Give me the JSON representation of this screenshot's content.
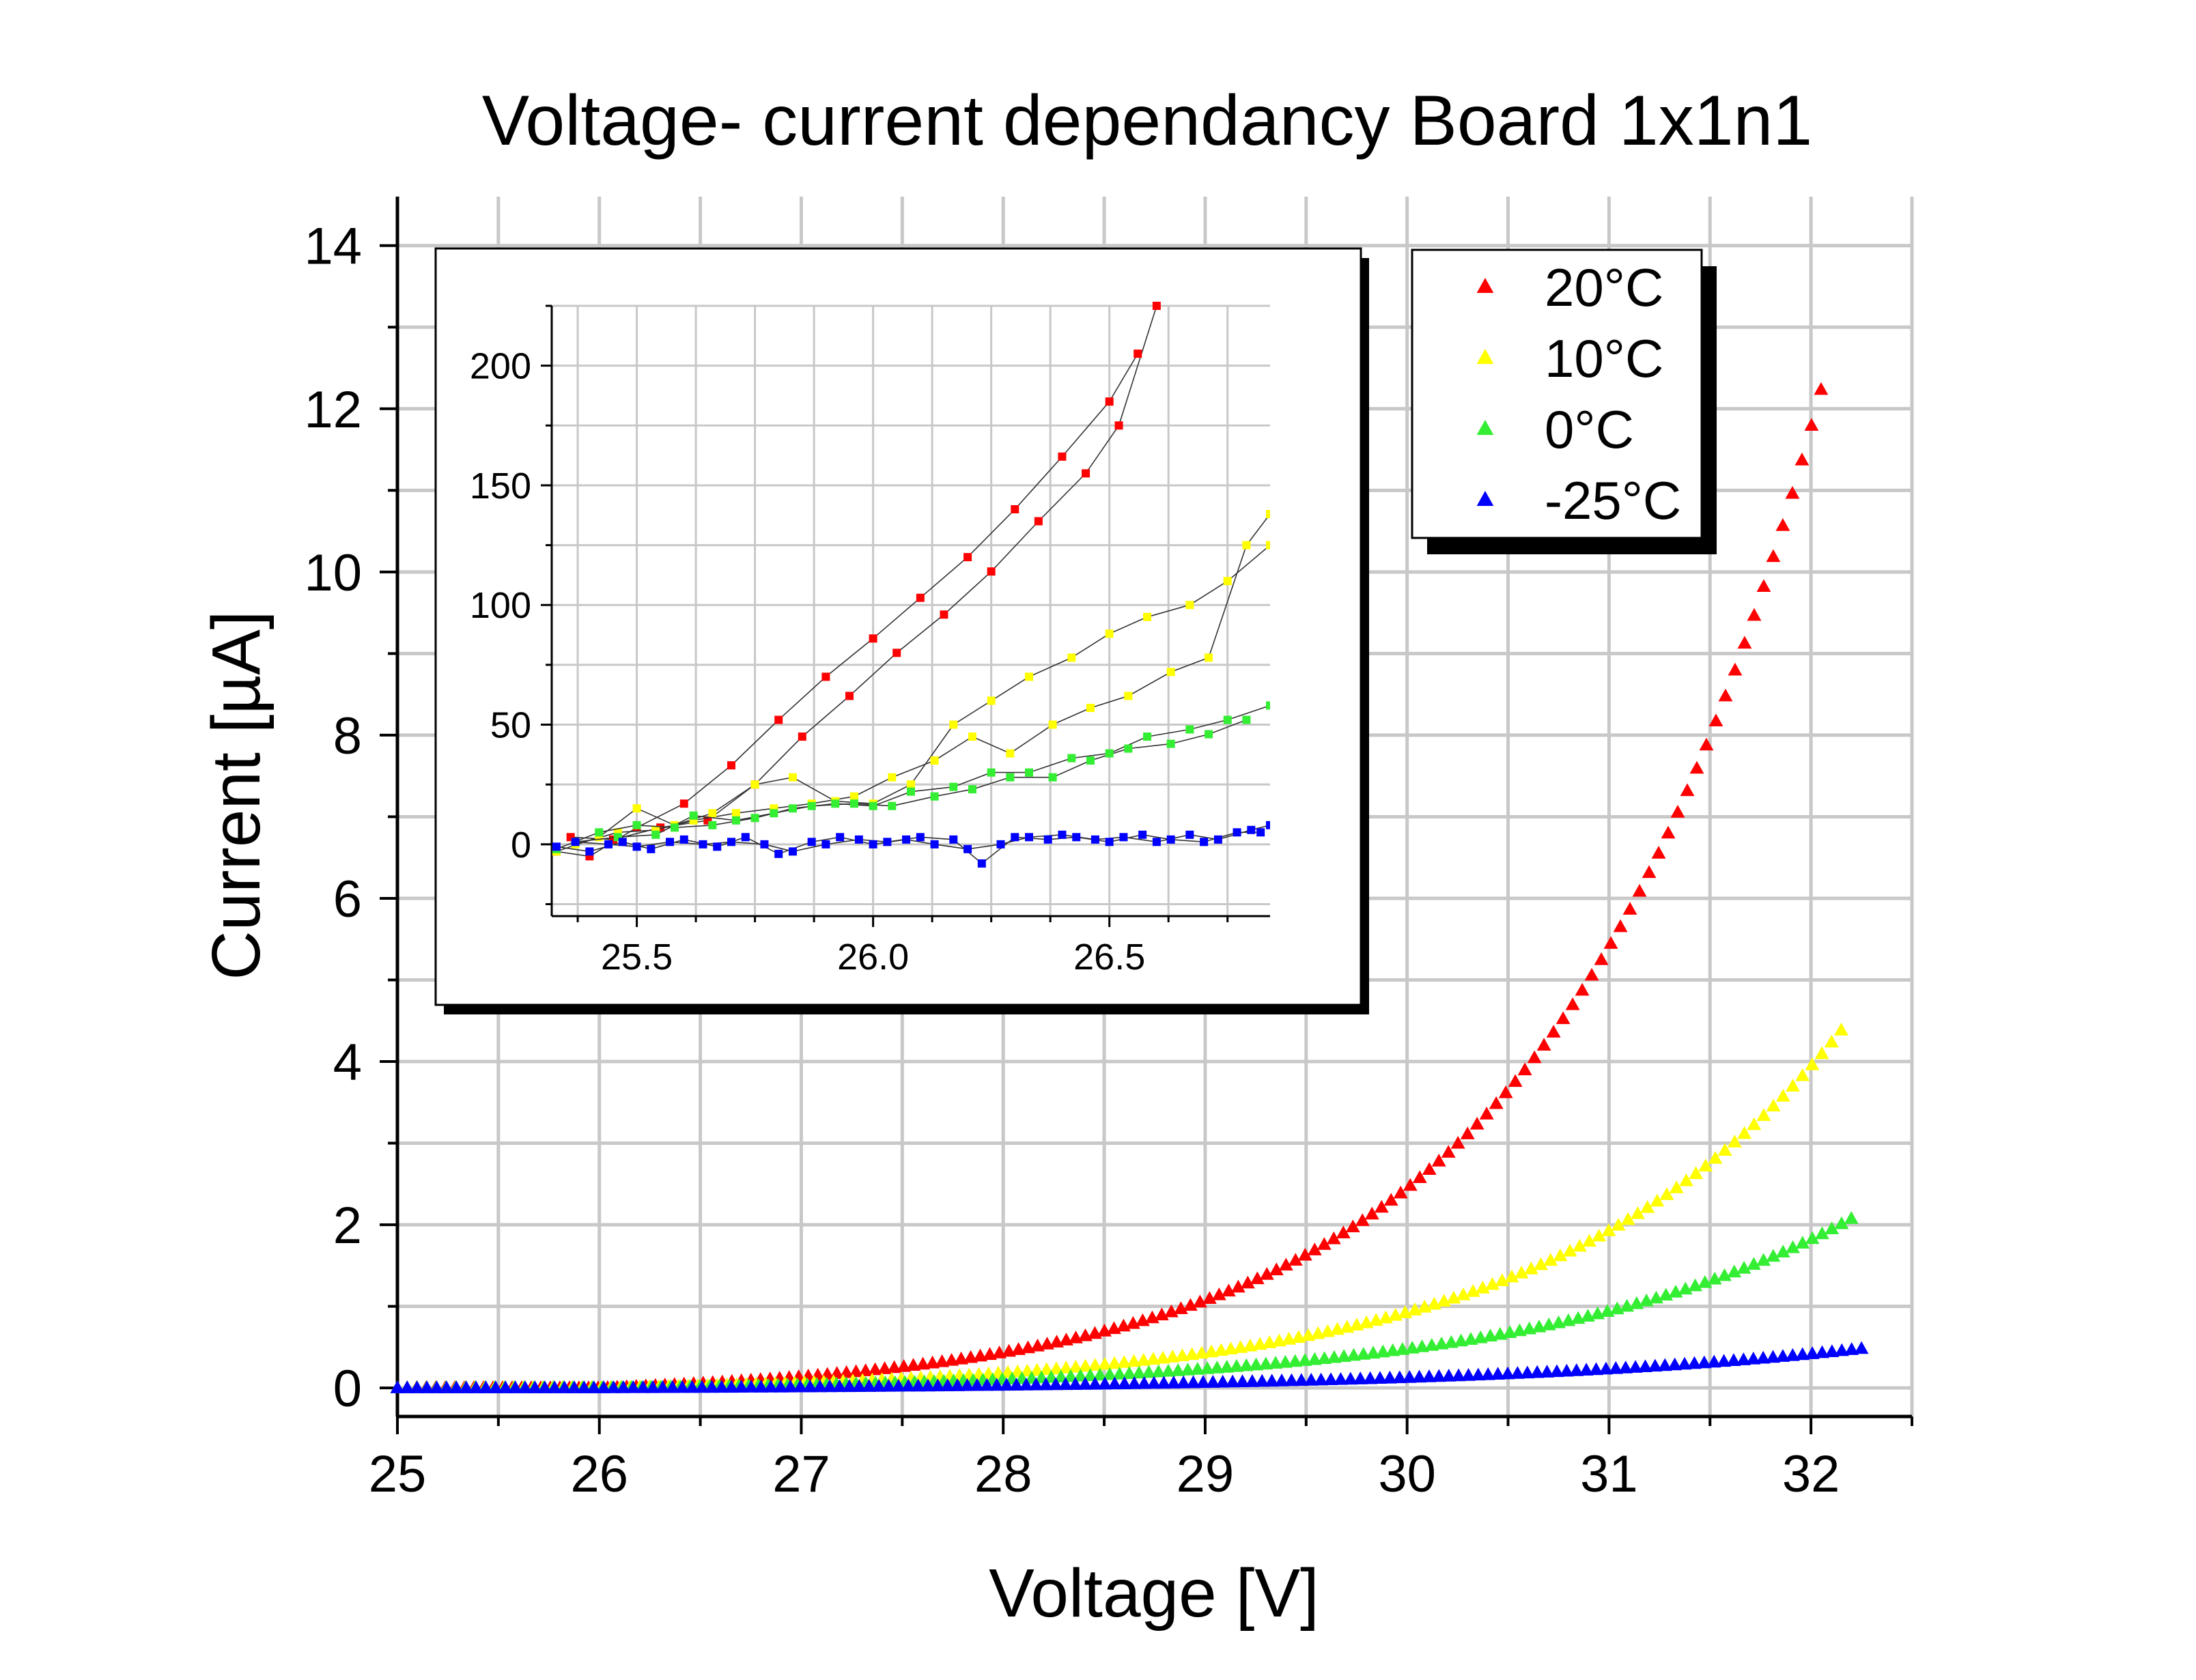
{
  "colors": {
    "red": "#ff0000",
    "yellow": "#ffff00",
    "green": "#33ee33",
    "blue": "#0000ff",
    "grid": "#c8c8c8",
    "axis": "#000000"
  },
  "chart_data": [
    {
      "type": "scatter",
      "title": "Voltage- current dependancy Board 1x1n1",
      "xlabel": "Voltage [V]",
      "ylabel": "Current [µA]",
      "xlim": [
        25,
        32.5
      ],
      "ylim": [
        -0.35,
        14.6
      ],
      "xticks": [
        25,
        26,
        27,
        28,
        29,
        30,
        31,
        32
      ],
      "yticks": [
        0,
        2,
        4,
        6,
        8,
        10,
        12,
        14
      ],
      "grid": true,
      "marker": "triangle",
      "legend_position": "top-right",
      "series": [
        {
          "name": "20°C",
          "color": "#ff0000",
          "model": {
            "type": "exponential",
            "v0": 26.0,
            "v_end": 32.05,
            "a": 0.12,
            "k": 0.766,
            "offset": -0.12
          },
          "n_points": 150
        },
        {
          "name": "10°C",
          "color": "#ffff00",
          "model": {
            "type": "exponential",
            "v0": 26.0,
            "v_end": 32.15,
            "a": 0.06,
            "k": 0.7,
            "offset": -0.06
          },
          "n_points": 150
        },
        {
          "name": "0°C",
          "color": "#33ee33",
          "model": {
            "type": "exponential",
            "v0": 26.0,
            "v_end": 32.2,
            "a": 0.04,
            "k": 0.64,
            "offset": -0.04
          },
          "n_points": 150
        },
        {
          "name": "-25°C",
          "color": "#0000ff",
          "model": {
            "type": "exponential",
            "v0": 26.0,
            "v_end": 32.25,
            "a": 0.015,
            "k": 0.56,
            "offset": -0.015
          },
          "n_points": 150
        }
      ]
    },
    {
      "type": "scatter",
      "title": "",
      "xlabel": "",
      "ylabel": "",
      "xlim": [
        25.32,
        26.84
      ],
      "ylim": [
        -30,
        225
      ],
      "xticks": [
        25.5,
        26.0,
        26.5
      ],
      "xtick_labels": [
        "25.5",
        "26.0",
        "26.5"
      ],
      "yticks": [
        0,
        50,
        100,
        150,
        200
      ],
      "grid": true,
      "marker": "square",
      "series": [
        {
          "name": "20°C",
          "color": "#ff0000",
          "x": [
            25.33,
            25.4,
            25.5,
            25.6,
            25.7,
            25.8,
            25.9,
            26.0,
            26.1,
            26.2,
            26.3,
            26.4,
            26.5,
            26.56,
            25.36,
            25.45,
            25.55,
            25.65,
            25.75,
            25.85,
            25.95,
            26.05,
            26.15,
            26.25,
            26.35,
            26.45,
            26.52,
            26.6
          ],
          "y": [
            -3,
            -5,
            7,
            17,
            33,
            52,
            70,
            86,
            103,
            120,
            140,
            162,
            185,
            205,
            3,
            2,
            7,
            10,
            25,
            45,
            62,
            80,
            96,
            114,
            135,
            155,
            175,
            225
          ]
        },
        {
          "name": "10°C",
          "color": "#ffff00",
          "x": [
            25.33,
            25.42,
            25.5,
            25.58,
            25.66,
            25.75,
            25.83,
            25.92,
            26.0,
            26.08,
            26.17,
            26.25,
            26.33,
            26.42,
            26.5,
            26.58,
            26.67,
            26.75,
            26.84,
            25.37,
            25.46,
            25.54,
            25.62,
            25.71,
            25.79,
            25.87,
            25.96,
            26.04,
            26.13,
            26.21,
            26.29,
            26.38,
            26.46,
            26.54,
            26.63,
            26.71,
            26.79,
            26.84
          ],
          "y": [
            -3,
            3,
            15,
            8,
            13,
            25,
            28,
            18,
            17,
            25,
            50,
            60,
            70,
            78,
            88,
            95,
            100,
            110,
            125,
            0,
            5,
            6,
            10,
            13,
            15,
            17,
            20,
            28,
            35,
            45,
            38,
            50,
            57,
            62,
            72,
            78,
            125,
            138
          ]
        },
        {
          "name": "0°C",
          "color": "#33ee33",
          "x": [
            25.33,
            25.42,
            25.5,
            25.58,
            25.66,
            25.75,
            25.83,
            25.92,
            26.0,
            26.08,
            26.17,
            26.25,
            26.33,
            26.42,
            26.5,
            26.58,
            26.67,
            26.75,
            26.84,
            25.37,
            25.46,
            25.54,
            25.62,
            25.71,
            25.79,
            25.87,
            25.96,
            26.04,
            26.13,
            26.21,
            26.29,
            26.38,
            26.46,
            26.54,
            26.63,
            26.71,
            26.79
          ],
          "y": [
            -2,
            5,
            8,
            7,
            8,
            11,
            15,
            17,
            16,
            22,
            24,
            30,
            30,
            36,
            38,
            45,
            48,
            52,
            58,
            1,
            3,
            4,
            12,
            10,
            13,
            16,
            17,
            16,
            20,
            23,
            28,
            28,
            35,
            40,
            42,
            46,
            52
          ]
        },
        {
          "name": "-25°C",
          "color": "#0000ff",
          "x": [
            25.33,
            25.4,
            25.47,
            25.53,
            25.6,
            25.67,
            25.73,
            25.8,
            25.87,
            25.93,
            26.0,
            26.07,
            26.13,
            26.2,
            26.27,
            26.33,
            26.4,
            26.47,
            26.53,
            26.6,
            26.67,
            26.73,
            26.8,
            26.84,
            25.37,
            25.44,
            25.5,
            25.57,
            25.64,
            25.7,
            25.77,
            25.83,
            25.9,
            25.97,
            26.03,
            26.1,
            26.17,
            26.23,
            26.3,
            26.37,
            26.43,
            26.5,
            26.57,
            26.63,
            26.7,
            26.77,
            26.82
          ],
          "y": [
            -1,
            -3,
            1,
            -2,
            2,
            -1,
            3,
            -4,
            1,
            3,
            0,
            2,
            0,
            -2,
            0,
            3,
            4,
            2,
            3,
            1,
            4,
            2,
            6,
            8,
            1,
            0,
            -1,
            1,
            0,
            1,
            0,
            -3,
            0,
            2,
            1,
            3,
            2,
            -8,
            3,
            2,
            3,
            1,
            4,
            2,
            1,
            5,
            5
          ]
        }
      ]
    }
  ]
}
